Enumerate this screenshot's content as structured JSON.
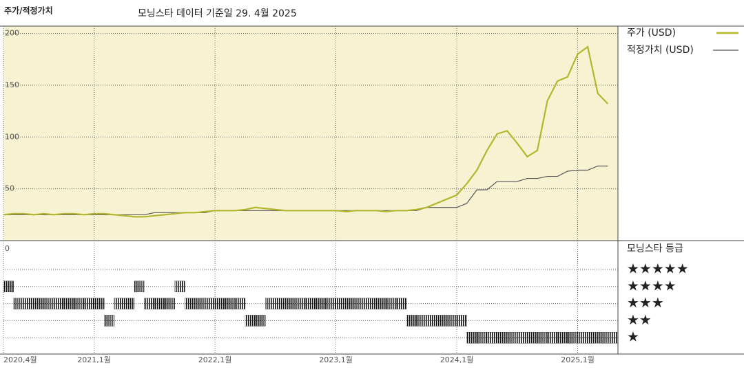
{
  "chart_data": [
    {
      "type": "line",
      "title": "주가/적정가치",
      "subtitle": "모닝스타 데이터 기준일 29. 4월 2025",
      "x": [
        "2020-04",
        "2020-05",
        "2020-06",
        "2020-07",
        "2020-08",
        "2020-09",
        "2020-10",
        "2020-11",
        "2020-12",
        "2021-01",
        "2021-02",
        "2021-03",
        "2021-04",
        "2021-05",
        "2021-06",
        "2021-07",
        "2021-08",
        "2021-09",
        "2021-10",
        "2021-11",
        "2021-12",
        "2022-01",
        "2022-02",
        "2022-03",
        "2022-04",
        "2022-05",
        "2022-06",
        "2022-07",
        "2022-08",
        "2022-09",
        "2022-10",
        "2022-11",
        "2022-12",
        "2023-01",
        "2023-02",
        "2023-03",
        "2023-04",
        "2023-05",
        "2023-06",
        "2023-07",
        "2023-08",
        "2023-09",
        "2023-10",
        "2023-11",
        "2023-12",
        "2024-01",
        "2024-02",
        "2024-03",
        "2024-04",
        "2024-05",
        "2024-06",
        "2024-07",
        "2024-08",
        "2024-09",
        "2024-10",
        "2024-11",
        "2024-12",
        "2025-01",
        "2025-02",
        "2025-03",
        "2025-04"
      ],
      "series": [
        {
          "name": "주가 (USD)",
          "color": "#b3b52c",
          "values": [
            25,
            26,
            26,
            25,
            26,
            25,
            26,
            26,
            25,
            26,
            26,
            25,
            24,
            23,
            23,
            24,
            25,
            26,
            27,
            27,
            28,
            29,
            29,
            29,
            30,
            32,
            31,
            30,
            29,
            29,
            29,
            29,
            29,
            29,
            28,
            29,
            29,
            29,
            28,
            29,
            29,
            30,
            32,
            36,
            40,
            44,
            55,
            68,
            87,
            103,
            106,
            94,
            81,
            87,
            135,
            154,
            158,
            180,
            187,
            142,
            132
          ]
        },
        {
          "name": "적정가치 (USD)",
          "color": "#555555",
          "values": [
            25,
            25,
            25,
            25,
            25,
            25,
            25,
            25,
            25,
            25,
            25,
            25,
            25,
            25,
            25,
            27,
            27,
            27,
            27,
            27,
            27,
            29,
            29,
            29,
            29,
            29,
            29,
            29,
            29,
            29,
            29,
            29,
            29,
            29,
            29,
            29,
            29,
            29,
            29,
            29,
            29,
            29,
            32,
            32,
            32,
            32,
            36,
            49,
            49,
            57,
            57,
            57,
            60,
            60,
            62,
            62,
            67,
            68,
            68,
            72,
            72
          ]
        }
      ],
      "xlim": [
        "2020-04",
        "2025-05"
      ],
      "ylim": [
        0,
        207
      ],
      "yticks": [
        0,
        50,
        100,
        150,
        200
      ],
      "xticks": [
        {
          "value": "2020-04",
          "label": "2020,4월"
        },
        {
          "value": "2021-01",
          "label": "2021,1월"
        },
        {
          "value": "2022-01",
          "label": "2022,1월"
        },
        {
          "value": "2023-01",
          "label": "2023,1월"
        },
        {
          "value": "2024-01",
          "label": "2024,1월"
        },
        {
          "value": "2025-01",
          "label": "2025,1월"
        }
      ],
      "grid": true,
      "background": "#f7f3d2"
    },
    {
      "type": "rating",
      "title": "모닝스타 등급",
      "x": [
        "2020-04",
        "2020-05",
        "2020-06",
        "2020-07",
        "2020-08",
        "2020-09",
        "2020-10",
        "2020-11",
        "2020-12",
        "2021-01",
        "2021-02",
        "2021-03",
        "2021-04",
        "2021-05",
        "2021-06",
        "2021-07",
        "2021-08",
        "2021-09",
        "2021-10",
        "2021-11",
        "2021-12",
        "2022-01",
        "2022-02",
        "2022-03",
        "2022-04",
        "2022-05",
        "2022-06",
        "2022-07",
        "2022-08",
        "2022-09",
        "2022-10",
        "2022-11",
        "2022-12",
        "2023-01",
        "2023-02",
        "2023-03",
        "2023-04",
        "2023-05",
        "2023-06",
        "2023-07",
        "2023-08",
        "2023-09",
        "2023-10",
        "2023-11",
        "2023-12",
        "2024-01",
        "2024-02",
        "2024-03",
        "2024-04",
        "2024-05",
        "2024-06",
        "2024-07",
        "2024-08",
        "2024-09",
        "2024-10",
        "2024-11",
        "2024-12",
        "2025-01",
        "2025-02",
        "2025-03",
        "2025-04"
      ],
      "values": [
        4,
        3,
        3,
        3,
        3,
        3,
        3,
        3,
        3,
        3,
        2,
        3,
        3,
        4,
        3,
        3,
        3,
        4,
        3,
        3,
        3,
        3,
        3,
        3,
        2,
        2,
        3,
        3,
        3,
        3,
        3,
        3,
        3,
        3,
        3,
        3,
        3,
        3,
        3,
        3,
        2,
        2,
        2,
        2,
        2,
        2,
        1,
        1,
        1,
        1,
        1,
        1,
        1,
        1,
        1,
        1,
        1,
        1,
        1,
        1,
        1
      ],
      "levels": [
        {
          "value": 5,
          "label": "★★★★★"
        },
        {
          "value": 4,
          "label": "★★★★"
        },
        {
          "value": 3,
          "label": "★★★"
        },
        {
          "value": 2,
          "label": "★★"
        },
        {
          "value": 1,
          "label": "★"
        }
      ],
      "color": "#000000"
    }
  ]
}
